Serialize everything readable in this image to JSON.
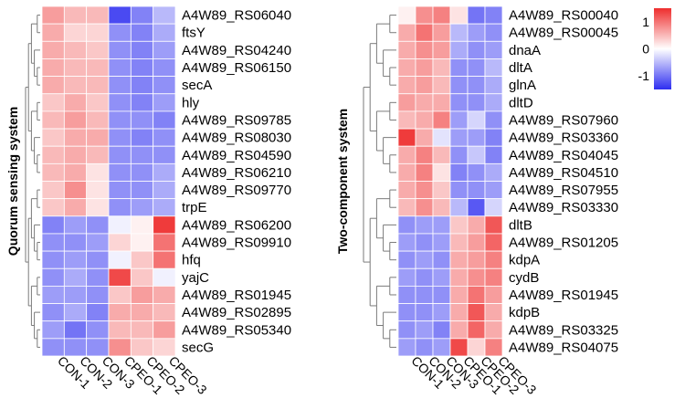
{
  "chart_data": [
    {
      "type": "heatmap",
      "title": "Quorum sensing system",
      "columns": [
        "CON-1",
        "CON-2",
        "CON-3",
        "CPEO-1",
        "CPEO-2",
        "CPEO-3"
      ],
      "rows": [
        "A4W89_RS06040",
        "ftsY",
        "A4W89_RS04240",
        "A4W89_RS06150",
        "secA",
        "hly",
        "A4W89_RS09785",
        "A4W89_RS08030",
        "A4W89_RS04590",
        "A4W89_RS06210",
        "A4W89_RS09770",
        "trpE",
        "A4W89_RS06200",
        "A4W89_RS09910",
        "hfq",
        "yajC",
        "A4W89_RS01945",
        "A4W89_RS02895",
        "A4W89_RS05340",
        "secG"
      ],
      "values": [
        [
          0.7,
          0.5,
          0.5,
          -1.3,
          -0.9,
          -0.5
        ],
        [
          0.6,
          0.3,
          0.3,
          -0.8,
          -0.9,
          -0.6
        ],
        [
          0.6,
          0.5,
          0.4,
          -0.8,
          -0.9,
          -0.7
        ],
        [
          0.6,
          0.5,
          0.5,
          -0.8,
          -0.9,
          -0.8
        ],
        [
          0.6,
          0.5,
          0.5,
          -0.8,
          -0.9,
          -0.8
        ],
        [
          0.4,
          0.6,
          0.4,
          -0.8,
          -0.9,
          -0.7
        ],
        [
          0.5,
          0.7,
          0.5,
          -0.8,
          -0.8,
          -0.9
        ],
        [
          0.4,
          0.6,
          0.6,
          -0.8,
          -0.9,
          -0.8
        ],
        [
          0.5,
          0.6,
          0.5,
          -0.8,
          -0.8,
          -0.8
        ],
        [
          0.5,
          0.6,
          0.2,
          -0.8,
          -0.8,
          -0.6
        ],
        [
          0.4,
          0.8,
          0.2,
          -0.8,
          -0.8,
          -0.6
        ],
        [
          0.4,
          0.6,
          0.2,
          -0.8,
          -0.7,
          -0.6
        ],
        [
          -0.9,
          -0.7,
          -0.8,
          -0.1,
          0.1,
          1.4
        ],
        [
          -0.8,
          -0.8,
          -0.7,
          0.3,
          0.1,
          1.0
        ],
        [
          -0.8,
          -0.7,
          -0.8,
          -0.1,
          0.4,
          1.0
        ],
        [
          -0.8,
          -0.6,
          -0.8,
          1.3,
          0.4,
          -0.1
        ],
        [
          -0.7,
          -0.7,
          -0.8,
          0.4,
          0.7,
          0.6
        ],
        [
          -0.8,
          -0.6,
          -0.9,
          0.6,
          0.6,
          0.5
        ],
        [
          -0.7,
          -1.0,
          -0.8,
          0.5,
          0.5,
          0.7
        ],
        [
          -0.8,
          -0.8,
          -0.8,
          0.8,
          0.4,
          0.3
        ]
      ]
    },
    {
      "type": "heatmap",
      "title": "Two-component system",
      "columns": [
        "CON-1",
        "CON-2",
        "CON-3",
        "CPEO-1",
        "CPEO-2",
        "CPEO-3"
      ],
      "rows": [
        "A4W89_RS00040",
        "A4W89_RS00045",
        "dnaA",
        "dltA",
        "glnA",
        "dltD",
        "A4W89_RS07960",
        "A4W89_RS03360",
        "A4W89_RS04045",
        "A4W89_RS04510",
        "A4W89_RS07955",
        "A4W89_RS03330",
        "dltB",
        "A4W89_RS01205",
        "kdpA",
        "cydB",
        "A4W89_RS01945",
        "kdpB",
        "A4W89_RS03325",
        "A4W89_RS04075"
      ],
      "values": [
        [
          0.1,
          0.8,
          0.9,
          0.2,
          -1.0,
          -0.9
        ],
        [
          0.6,
          1.0,
          0.7,
          -0.5,
          -0.7,
          -0.8
        ],
        [
          0.6,
          0.8,
          0.7,
          -0.6,
          -0.8,
          -0.7
        ],
        [
          0.6,
          0.7,
          0.5,
          -0.8,
          -0.8,
          -0.5
        ],
        [
          0.6,
          0.7,
          0.5,
          -0.8,
          -0.8,
          -0.6
        ],
        [
          0.7,
          0.6,
          0.6,
          -0.8,
          -0.8,
          -0.6
        ],
        [
          0.5,
          0.6,
          0.9,
          -0.7,
          -0.3,
          -0.8
        ],
        [
          1.4,
          0.6,
          -0.2,
          -0.7,
          -0.7,
          -0.9
        ],
        [
          0.6,
          0.9,
          0.5,
          -0.8,
          -0.4,
          -0.9
        ],
        [
          0.6,
          0.9,
          0.2,
          -0.9,
          -0.8,
          -0.6
        ],
        [
          0.6,
          0.8,
          0.4,
          -0.8,
          -0.8,
          -0.7
        ],
        [
          0.5,
          0.8,
          0.5,
          -0.5,
          -1.2,
          -0.3
        ],
        [
          -0.8,
          -0.7,
          -0.7,
          0.4,
          0.6,
          1.2
        ],
        [
          -0.7,
          -0.8,
          -0.7,
          0.5,
          0.7,
          1.1
        ],
        [
          -0.8,
          -0.7,
          -0.8,
          0.6,
          0.7,
          0.9
        ],
        [
          -0.7,
          -0.8,
          -0.7,
          0.6,
          0.8,
          0.9
        ],
        [
          -0.8,
          -0.8,
          -0.8,
          0.6,
          1.0,
          0.7
        ],
        [
          -0.8,
          -0.8,
          -0.7,
          0.6,
          1.2,
          0.6
        ],
        [
          -0.8,
          -0.7,
          -0.9,
          0.6,
          1.1,
          0.6
        ],
        [
          -0.7,
          -0.8,
          -0.7,
          1.3,
          0.3,
          0.9
        ]
      ]
    }
  ],
  "legend": {
    "ticks": [
      {
        "value": 1,
        "label": "1"
      },
      {
        "value": 0,
        "label": "0"
      },
      {
        "value": -1,
        "label": "-1"
      }
    ],
    "range": [
      -1.5,
      1.5
    ],
    "colors": {
      "low": "#2e2ef0",
      "mid": "#ffffff",
      "high": "#ee2d2d"
    }
  }
}
